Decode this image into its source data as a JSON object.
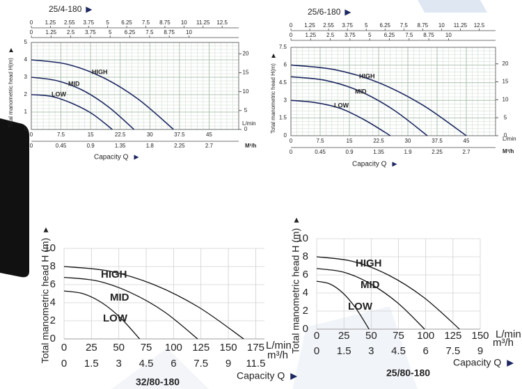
{
  "chart_data": [
    {
      "type": "line",
      "title": "25/4-180",
      "y_label": "Total manometric head H(m)",
      "x_label": "Capacity Q",
      "x_unit": "L/min",
      "x2_unit": "M³/h",
      "grid": "dense",
      "xlim": [
        0,
        52.5
      ],
      "xticks": [
        0,
        7.5,
        15,
        22.5,
        30,
        37.5,
        45
      ],
      "ylim": [
        0,
        5
      ],
      "yticks": [
        0,
        1,
        2,
        3,
        4,
        5
      ],
      "y2lim": [
        0,
        23
      ],
      "y2ticks": [
        0,
        5,
        10,
        15,
        20
      ],
      "top_scales": [
        [
          "0",
          "1.25",
          "2.55",
          "3.75",
          "5",
          "6.25",
          "7.5",
          "8.75",
          "10",
          "11.25",
          "12.5"
        ],
        [
          "0",
          "1.25",
          "2.5",
          "3.75",
          "5",
          "6.25",
          "7.5",
          "8.75",
          "10"
        ]
      ],
      "bottom_scale": [
        "0",
        "0.45",
        "0.9",
        "1.35",
        "1.8",
        "2.25",
        "2.7"
      ],
      "line_color": "#1c2660",
      "series": [
        {
          "name": "HIGH",
          "x": [
            0,
            9,
            18,
            27,
            36
          ],
          "values": [
            4,
            3.75,
            3,
            1.75,
            0
          ]
        },
        {
          "name": "MID",
          "x": [
            0,
            6.5,
            13,
            19.5,
            26
          ],
          "values": [
            3,
            2.8,
            2.25,
            1.3,
            0
          ]
        },
        {
          "name": "LOW",
          "x": [
            0,
            5.1,
            10.3,
            15.4,
            20.5
          ],
          "values": [
            2,
            1.9,
            1.5,
            0.9,
            0
          ]
        }
      ]
    },
    {
      "type": "line",
      "title": "25/6-180",
      "y_label": "Total manometric head H(m)",
      "x_label": "Capacity Q",
      "x_unit": "L/min",
      "x2_unit": "M³/h",
      "grid": "dense",
      "xlim": [
        0,
        52.5
      ],
      "xticks": [
        0,
        7.5,
        15,
        22.5,
        30,
        37.5,
        45
      ],
      "ylim": [
        0,
        7.5
      ],
      "yticks": [
        0,
        1.5,
        3,
        4.5,
        6,
        7.5
      ],
      "y2lim": [
        0,
        24.6
      ],
      "y2ticks": [
        0,
        5,
        10,
        15,
        20
      ],
      "top_scales": [
        [
          "0",
          "1.25",
          "2.55",
          "3.75",
          "5",
          "6.25",
          "7.5",
          "8.75",
          "10",
          "11.25",
          "12.5"
        ],
        [
          "0",
          "1.25",
          "2.5",
          "3.75",
          "5",
          "6.25",
          "7.5",
          "8.75",
          "10"
        ]
      ],
      "bottom_scale": [
        "0",
        "0.45",
        "0.9",
        "1.35",
        "1.9",
        "2.25",
        "2.7"
      ],
      "line_color": "#1c2660",
      "series": [
        {
          "name": "HIGH",
          "x": [
            0,
            11.3,
            22.5,
            33.8,
            45
          ],
          "values": [
            6,
            5.6,
            4.5,
            2.6,
            0
          ]
        },
        {
          "name": "MID",
          "x": [
            0,
            8.8,
            17.5,
            26.3,
            35
          ],
          "values": [
            5,
            4.7,
            3.8,
            2.2,
            0
          ]
        },
        {
          "name": "LOW",
          "x": [
            0,
            6.4,
            12.8,
            19.1,
            25.5
          ],
          "values": [
            3,
            2.8,
            2.3,
            1.3,
            0
          ]
        }
      ]
    },
    {
      "type": "line",
      "title": "32/80-180",
      "y_label": "Total manometric head H (m)",
      "x_label": "Capacity Q",
      "x_unit": "L/min",
      "x2_unit": "m³/h",
      "grid": "major",
      "xlim": [
        0,
        183
      ],
      "xticks": [
        0,
        25,
        50,
        75,
        100,
        125,
        150,
        175
      ],
      "ylim": [
        0,
        10
      ],
      "yticks": [
        0,
        2,
        4,
        6,
        8,
        10
      ],
      "bottom_scale": [
        "0",
        "1.5",
        "3",
        "4.5",
        "6",
        "7.5",
        "9",
        "11.5"
      ],
      "line_color": "#111111",
      "series": [
        {
          "name": "HIGH",
          "x": [
            0,
            41,
            82,
            123,
            164
          ],
          "values": [
            8,
            7.5,
            6,
            3.5,
            0
          ]
        },
        {
          "name": "MID",
          "x": [
            0,
            30.5,
            61,
            91.5,
            122
          ],
          "values": [
            6.8,
            6.4,
            5.1,
            3,
            0
          ]
        },
        {
          "name": "LOW",
          "x": [
            0,
            17.3,
            34.5,
            51.8,
            69
          ],
          "values": [
            5.3,
            5,
            4,
            2.3,
            0
          ]
        }
      ]
    },
    {
      "type": "line",
      "title": "25/80-180",
      "y_label": "Total manometric head H (m)",
      "x_label": "Capacity Q",
      "x_unit": "L/min",
      "x2_unit": "m³/h",
      "grid": "major",
      "xlim": [
        0,
        150
      ],
      "xticks": [
        0,
        25,
        50,
        75,
        100,
        125,
        150
      ],
      "ylim": [
        0,
        10
      ],
      "yticks": [
        0,
        2,
        4,
        6,
        8,
        10
      ],
      "bottom_scale": [
        "0",
        "1.5",
        "3",
        "4.5",
        "6",
        "7.5",
        "9"
      ],
      "line_color": "#111111",
      "series": [
        {
          "name": "HIGH",
          "x": [
            0,
            32.8,
            65.5,
            98.3,
            131
          ],
          "values": [
            8,
            7.5,
            6,
            3.5,
            0
          ]
        },
        {
          "name": "MID",
          "x": [
            0,
            24.8,
            49.5,
            74.3,
            99
          ],
          "values": [
            6.7,
            6.3,
            5,
            2.9,
            0
          ]
        },
        {
          "name": "LOW",
          "x": [
            0,
            12,
            24,
            36,
            48
          ],
          "values": [
            5.3,
            5,
            4,
            2.3,
            0
          ]
        }
      ]
    }
  ]
}
